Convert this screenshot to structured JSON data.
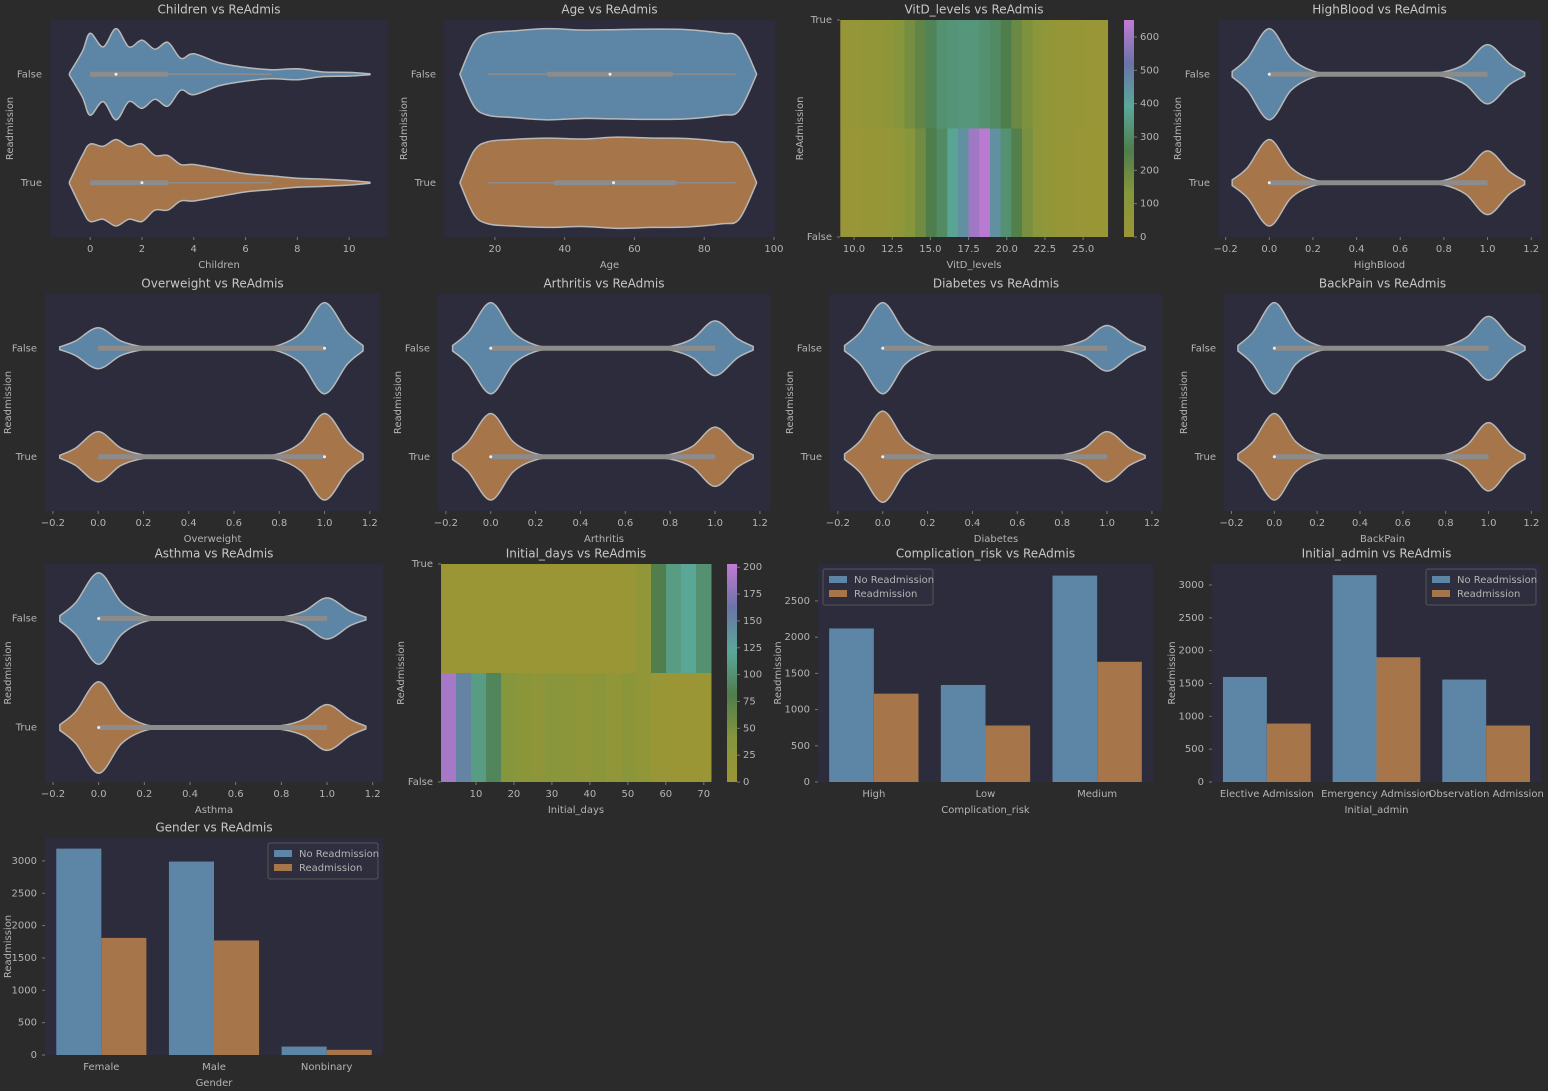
{
  "chart_data": [
    {
      "type": "violin",
      "title": "Children vs ReAdmis",
      "xlabel": "Children",
      "ylabel": "Readmission",
      "xlim": [
        -1.55,
        11.5
      ],
      "xticks": [
        0,
        2,
        4,
        6,
        8,
        10
      ],
      "density_x": [
        -0.8,
        -0.3,
        0,
        0.5,
        1,
        1.5,
        2,
        2.5,
        3,
        3.5,
        4,
        5,
        6,
        7,
        8,
        9,
        10,
        10.8
      ],
      "series": [
        {
          "name": "False",
          "color": "#5d86a6",
          "density": [
            0.02,
            0.5,
            0.9,
            0.6,
            1.0,
            0.6,
            0.75,
            0.55,
            0.7,
            0.35,
            0.45,
            0.25,
            0.15,
            0.1,
            0.12,
            0.05,
            0.04,
            0.01
          ],
          "whisker_low": 0,
          "q1": 0,
          "median": 1,
          "q3": 3,
          "whisker_high": 7
        },
        {
          "name": "True",
          "color": "#a6754a",
          "density": [
            0.02,
            0.6,
            0.85,
            0.8,
            0.95,
            0.8,
            0.85,
            0.6,
            0.6,
            0.4,
            0.4,
            0.3,
            0.2,
            0.15,
            0.1,
            0.08,
            0.05,
            0.01
          ],
          "whisker_low": 0,
          "q1": 0,
          "median": 2,
          "q3": 3,
          "whisker_high": 7
        }
      ]
    },
    {
      "type": "violin",
      "title": "Age vs ReAdmis",
      "xlabel": "Age",
      "ylabel": "Readmission",
      "xlim": [
        5.4,
        100.3
      ],
      "xticks": [
        20,
        40,
        60,
        80,
        100
      ],
      "density_x": [
        10,
        14,
        18,
        25,
        35,
        45,
        55,
        65,
        75,
        85,
        90,
        95
      ],
      "series": [
        {
          "name": "False",
          "color": "#5d86a6",
          "density": [
            0.01,
            0.7,
            0.9,
            0.95,
            1,
            0.97,
            0.98,
            0.99,
            0.98,
            0.9,
            0.8,
            0.01
          ],
          "whisker_low": 18,
          "q1": 35,
          "median": 53,
          "q3": 71,
          "whisker_high": 89
        },
        {
          "name": "True",
          "color": "#a6754a",
          "density": [
            0.01,
            0.7,
            0.9,
            0.95,
            0.98,
            0.96,
            1,
            0.98,
            0.97,
            0.9,
            0.8,
            0.01
          ],
          "whisker_low": 18,
          "q1": 37,
          "median": 54,
          "q3": 72,
          "whisker_high": 89
        }
      ]
    },
    {
      "type": "heatmap",
      "title": "VitD_levels vs ReAdmis",
      "xlabel": "VitD_levels",
      "ylabel": "ReAdmission",
      "xlim": [
        9.08,
        26.63
      ],
      "xticks": [
        {
          "value": 10,
          "label": "10.0"
        },
        12.5,
        {
          "value": 15,
          "label": "15.0"
        },
        17.5,
        {
          "value": 20,
          "label": "20.0"
        },
        22.5,
        {
          "value": 25,
          "label": "25.0"
        }
      ],
      "ylim": [
        0,
        1
      ],
      "yticks": [
        {
          "value": 0,
          "label": "False"
        },
        {
          "value": 1,
          "label": "True"
        }
      ],
      "bins": [
        9.1,
        9.8,
        10.5,
        11.2,
        11.9,
        12.6,
        13.3,
        14.0,
        14.7,
        15.4,
        16.1,
        16.8,
        17.5,
        18.2,
        18.9,
        19.6,
        20.3,
        21.0,
        21.7,
        22.4,
        23.1,
        23.8,
        24.5,
        25.2,
        25.9,
        26.6
      ],
      "counts": [
        [
          20,
          20,
          25,
          30,
          40,
          60,
          120,
          180,
          260,
          300,
          380,
          450,
          600,
          640,
          450,
          320,
          250,
          160,
          90,
          60,
          40,
          25,
          20,
          15,
          10
        ],
        [
          30,
          40,
          50,
          60,
          80,
          120,
          170,
          220,
          280,
          320,
          330,
          340,
          340,
          320,
          300,
          260,
          200,
          150,
          90,
          60,
          40,
          30,
          25,
          20,
          15
        ]
      ],
      "clim": [
        0,
        651
      ],
      "cticks": [
        0,
        100,
        200,
        300,
        400,
        500,
        600
      ],
      "colormap": [
        "#9b9635",
        "#86963c",
        "#4f7d4c",
        "#5aa89a",
        "#6a74a8",
        "#c27bd6"
      ]
    },
    {
      "type": "violin",
      "title": "HighBlood vs ReAdmis",
      "xlabel": "HighBlood",
      "ylabel": "Readmission",
      "xlim": [
        -0.235,
        1.245
      ],
      "xticks": [
        {
          "value": -0.2,
          "label": "−0.2"
        },
        {
          "value": 0,
          "label": "0.0"
        },
        0.2,
        0.4,
        0.6,
        0.8,
        {
          "value": 1,
          "label": "1.0"
        },
        1.2
      ],
      "density_x": [
        -0.17,
        -0.1,
        0,
        0.1,
        0.2,
        0.3,
        0.5,
        0.7,
        0.8,
        0.9,
        1,
        1.1,
        1.17
      ],
      "series": [
        {
          "name": "False",
          "color": "#5d86a6",
          "density": [
            0.06,
            0.35,
            1,
            0.35,
            0.07,
            0.02,
            0.01,
            0.02,
            0.05,
            0.23,
            0.65,
            0.23,
            0.04
          ],
          "whisker_low": 0,
          "q1": 0,
          "median": 0,
          "q3": 1,
          "whisker_high": 1
        },
        {
          "name": "True",
          "color": "#a6754a",
          "density": [
            0.06,
            0.33,
            0.95,
            0.33,
            0.07,
            0.02,
            0.01,
            0.02,
            0.05,
            0.25,
            0.7,
            0.25,
            0.04
          ],
          "whisker_low": 0,
          "q1": 0,
          "median": 0,
          "q3": 1,
          "whisker_high": 1
        }
      ]
    },
    {
      "type": "violin",
      "title": "Overweight vs ReAdmis",
      "xlabel": "Overweight",
      "ylabel": "Readmission",
      "xlim": [
        -0.235,
        1.245
      ],
      "xticks": [
        {
          "value": -0.2,
          "label": "−0.2"
        },
        {
          "value": 0,
          "label": "0.0"
        },
        0.2,
        0.4,
        0.6,
        0.8,
        {
          "value": 1,
          "label": "1.0"
        },
        1.2
      ],
      "density_x": [
        -0.17,
        -0.1,
        0,
        0.1,
        0.2,
        0.3,
        0.5,
        0.7,
        0.8,
        0.9,
        1,
        1.1,
        1.17
      ],
      "series": [
        {
          "name": "False",
          "color": "#5d86a6",
          "density": [
            0.03,
            0.16,
            0.45,
            0.16,
            0.03,
            0.01,
            0.01,
            0.02,
            0.07,
            0.35,
            1,
            0.35,
            0.06
          ],
          "whisker_low": 0,
          "q1": 0,
          "median": 1,
          "q3": 1,
          "whisker_high": 1
        },
        {
          "name": "True",
          "color": "#a6754a",
          "density": [
            0.03,
            0.19,
            0.55,
            0.19,
            0.04,
            0.01,
            0.01,
            0.02,
            0.07,
            0.33,
            0.95,
            0.33,
            0.06
          ],
          "whisker_low": 0,
          "q1": 0,
          "median": 1,
          "q3": 1,
          "whisker_high": 1
        }
      ]
    },
    {
      "type": "violin",
      "title": "Arthritis vs ReAdmis",
      "xlabel": "Arthritis",
      "ylabel": "Readmission",
      "xlim": [
        -0.235,
        1.245
      ],
      "xticks": [
        {
          "value": -0.2,
          "label": "−0.2"
        },
        {
          "value": 0,
          "label": "0.0"
        },
        0.2,
        0.4,
        0.6,
        0.8,
        {
          "value": 1,
          "label": "1.0"
        },
        1.2
      ],
      "density_x": [
        -0.17,
        -0.1,
        0,
        0.1,
        0.2,
        0.3,
        0.5,
        0.7,
        0.8,
        0.9,
        1,
        1.1,
        1.17
      ],
      "series": [
        {
          "name": "False",
          "color": "#5d86a6",
          "density": [
            0.06,
            0.35,
            1,
            0.35,
            0.07,
            0.02,
            0.01,
            0.02,
            0.04,
            0.21,
            0.6,
            0.21,
            0.04
          ],
          "whisker_low": 0,
          "q1": 0,
          "median": 0,
          "q3": 1,
          "whisker_high": 1
        },
        {
          "name": "True",
          "color": "#a6754a",
          "density": [
            0.06,
            0.33,
            0.95,
            0.33,
            0.07,
            0.02,
            0.01,
            0.02,
            0.05,
            0.23,
            0.65,
            0.23,
            0.04
          ],
          "whisker_low": 0,
          "q1": 0,
          "median": 0,
          "q3": 1,
          "whisker_high": 1
        }
      ]
    },
    {
      "type": "violin",
      "title": "Diabetes vs ReAdmis",
      "xlabel": "Diabetes",
      "ylabel": "Readmission",
      "xlim": [
        -0.235,
        1.245
      ],
      "xticks": [
        {
          "value": -0.2,
          "label": "−0.2"
        },
        {
          "value": 0,
          "label": "0.0"
        },
        0.2,
        0.4,
        0.6,
        0.8,
        {
          "value": 1,
          "label": "1.0"
        },
        1.2
      ],
      "density_x": [
        -0.17,
        -0.1,
        0,
        0.1,
        0.2,
        0.3,
        0.5,
        0.7,
        0.8,
        0.9,
        1,
        1.1,
        1.17
      ],
      "series": [
        {
          "name": "False",
          "color": "#5d86a6",
          "density": [
            0.06,
            0.35,
            1,
            0.35,
            0.07,
            0.02,
            0.01,
            0.02,
            0.04,
            0.18,
            0.5,
            0.18,
            0.03
          ],
          "whisker_low": 0,
          "q1": 0,
          "median": 0,
          "q3": 1,
          "whisker_high": 1
        },
        {
          "name": "True",
          "color": "#a6754a",
          "density": [
            0.06,
            0.35,
            1,
            0.35,
            0.07,
            0.02,
            0.01,
            0.02,
            0.04,
            0.19,
            0.55,
            0.19,
            0.03
          ],
          "whisker_low": 0,
          "q1": 0,
          "median": 0,
          "q3": 1,
          "whisker_high": 1
        }
      ]
    },
    {
      "type": "violin",
      "title": "BackPain vs ReAdmis",
      "xlabel": "BackPain",
      "ylabel": "Readmission",
      "xlim": [
        -0.235,
        1.245
      ],
      "xticks": [
        {
          "value": -0.2,
          "label": "−0.2"
        },
        {
          "value": 0,
          "label": "0.0"
        },
        0.2,
        0.4,
        0.6,
        0.8,
        {
          "value": 1,
          "label": "1.0"
        },
        1.2
      ],
      "density_x": [
        -0.17,
        -0.1,
        0,
        0.1,
        0.2,
        0.3,
        0.5,
        0.7,
        0.8,
        0.9,
        1,
        1.1,
        1.17
      ],
      "series": [
        {
          "name": "False",
          "color": "#5d86a6",
          "density": [
            0.06,
            0.35,
            1,
            0.35,
            0.07,
            0.02,
            0.01,
            0.02,
            0.05,
            0.25,
            0.7,
            0.25,
            0.04
          ],
          "whisker_low": 0,
          "q1": 0,
          "median": 0,
          "q3": 1,
          "whisker_high": 1
        },
        {
          "name": "True",
          "color": "#a6754a",
          "density": [
            0.06,
            0.33,
            0.95,
            0.33,
            0.07,
            0.02,
            0.01,
            0.02,
            0.05,
            0.26,
            0.75,
            0.26,
            0.05
          ],
          "whisker_low": 0,
          "q1": 0,
          "median": 0,
          "q3": 1,
          "whisker_high": 1
        }
      ]
    },
    {
      "type": "violin",
      "title": "Asthma vs ReAdmis",
      "xlabel": "Asthma",
      "ylabel": "Readmission",
      "xlim": [
        -0.235,
        1.245
      ],
      "xticks": [
        {
          "value": -0.2,
          "label": "−0.2"
        },
        {
          "value": 0,
          "label": "0.0"
        },
        0.2,
        0.4,
        0.6,
        0.8,
        {
          "value": 1,
          "label": "1.0"
        },
        1.2
      ],
      "density_x": [
        -0.17,
        -0.1,
        0,
        0.1,
        0.2,
        0.3,
        0.5,
        0.7,
        0.8,
        0.9,
        1,
        1.1,
        1.17
      ],
      "series": [
        {
          "name": "False",
          "color": "#5d86a6",
          "density": [
            0.06,
            0.35,
            1,
            0.35,
            0.07,
            0.02,
            0.01,
            0.02,
            0.03,
            0.16,
            0.45,
            0.16,
            0.03
          ],
          "whisker_low": 0,
          "q1": 0,
          "median": 0,
          "q3": 1,
          "whisker_high": 1
        },
        {
          "name": "True",
          "color": "#a6754a",
          "density": [
            0.06,
            0.35,
            1,
            0.35,
            0.07,
            0.02,
            0.01,
            0.02,
            0.04,
            0.18,
            0.5,
            0.18,
            0.03
          ],
          "whisker_low": 0,
          "q1": 0,
          "median": 0,
          "q3": 1,
          "whisker_high": 1
        }
      ]
    },
    {
      "type": "heatmap",
      "title": "Initial_days vs ReAdmis",
      "xlabel": "Initial_days",
      "ylabel": "ReAdmission",
      "xlim": [
        0.79,
        71.9
      ],
      "xticks": [
        10,
        20,
        30,
        40,
        50,
        60,
        70
      ],
      "ylim": [
        0,
        1
      ],
      "yticks": [
        {
          "value": 0,
          "label": "False"
        },
        {
          "value": 1,
          "label": "True"
        }
      ],
      "bins": [
        0.8,
        4.75,
        8.7,
        12.65,
        16.6,
        20.55,
        24.5,
        28.45,
        32.4,
        36.35,
        40.3,
        44.25,
        48.2,
        52.15,
        56.1,
        60.05,
        64,
        67.95,
        71.9
      ],
      "counts": [
        [
          190,
          150,
          110,
          90,
          40,
          30,
          25,
          35,
          30,
          25,
          30,
          20,
          30,
          20,
          5,
          0,
          0,
          0
        ],
        [
          0,
          0,
          0,
          0,
          0,
          0,
          0,
          0,
          0,
          0,
          0,
          0,
          5,
          20,
          80,
          110,
          120,
          100
        ]
      ],
      "clim": [
        0,
        203
      ],
      "cticks": [
        0,
        25,
        50,
        75,
        100,
        125,
        150,
        175,
        200
      ],
      "colormap": [
        "#9b9635",
        "#86963c",
        "#4f7d4c",
        "#5aa89a",
        "#6a74a8",
        "#c27bd6"
      ]
    },
    {
      "type": "bar",
      "title": "Complication_risk vs ReAdmis",
      "xlabel": "Complication_risk",
      "ylabel": "Readmission",
      "legend": "upper left",
      "categories": [
        "High",
        "Low",
        "Medium"
      ],
      "ylim": [
        0,
        3010
      ],
      "yticks": [
        0,
        500,
        1000,
        1500,
        2000,
        2500
      ],
      "series": [
        {
          "name": "No Readmission",
          "color": "#5d86a6",
          "values": [
            2120,
            1340,
            2850
          ]
        },
        {
          "name": "Readmission",
          "color": "#a6754a",
          "values": [
            1220,
            780,
            1660
          ]
        }
      ]
    },
    {
      "type": "bar",
      "title": "Initial_admin vs ReAdmis",
      "xlabel": "Initial_admin",
      "ylabel": "Readmission",
      "legend": "upper right",
      "categories": [
        "Elective Admission",
        "Emergency Admission",
        "Observation Admission"
      ],
      "ylim": [
        0,
        3320
      ],
      "yticks": [
        0,
        500,
        1000,
        1500,
        2000,
        2500,
        3000
      ],
      "series": [
        {
          "name": "No Readmission",
          "color": "#5d86a6",
          "values": [
            1600,
            3150,
            1560
          ]
        },
        {
          "name": "Readmission",
          "color": "#a6754a",
          "values": [
            890,
            1900,
            860
          ]
        }
      ]
    },
    {
      "type": "bar",
      "title": "Gender vs ReAdmis",
      "xlabel": "Gender",
      "ylabel": "Readmission",
      "legend": "upper right",
      "categories": [
        "Female",
        "Male",
        "Nonbinary"
      ],
      "ylim": [
        0,
        3354
      ],
      "yticks": [
        0,
        500,
        1000,
        1500,
        2000,
        2500,
        3000
      ],
      "series": [
        {
          "name": "No Readmission",
          "color": "#5d86a6",
          "values": [
            3190,
            2990,
            130
          ]
        },
        {
          "name": "Readmission",
          "color": "#a6754a",
          "values": [
            1810,
            1770,
            80
          ]
        }
      ]
    }
  ]
}
